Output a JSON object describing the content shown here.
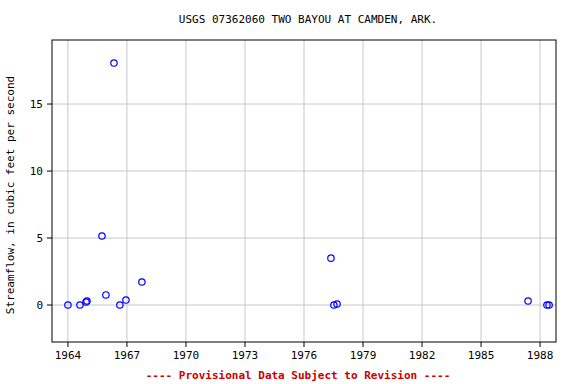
{
  "chart_data": {
    "type": "scatter",
    "title": "USGS 07362060 TWO BAYOU AT CAMDEN, ARK.",
    "ylabel": "Streamflow, in cubic feet per second",
    "annotation": "---- Provisional Data Subject to Revision ----",
    "x": [
      1964.0,
      1964.61,
      1964.92,
      1964.97,
      1965.73,
      1965.93,
      1966.34,
      1966.64,
      1966.95,
      1967.76,
      1977.37,
      1977.52,
      1977.68,
      1987.39,
      1988.35,
      1988.46
    ],
    "values": [
      0,
      0,
      0.22,
      0.3,
      5.15,
      0.75,
      18.06,
      0,
      0.37,
      1.72,
      3.5,
      0,
      0.07,
      0.3,
      0,
      0
    ],
    "color": "#0000ff",
    "marker": "open-circle",
    "xlim": [
      1963.19,
      1988.81
    ],
    "xticks": [
      1964,
      1967,
      1970,
      1973,
      1976,
      1979,
      1982,
      1985,
      1988
    ],
    "ylim": [
      -2.76,
      19.78
    ],
    "yticks": [
      0,
      5,
      10,
      15
    ],
    "grid": true
  }
}
